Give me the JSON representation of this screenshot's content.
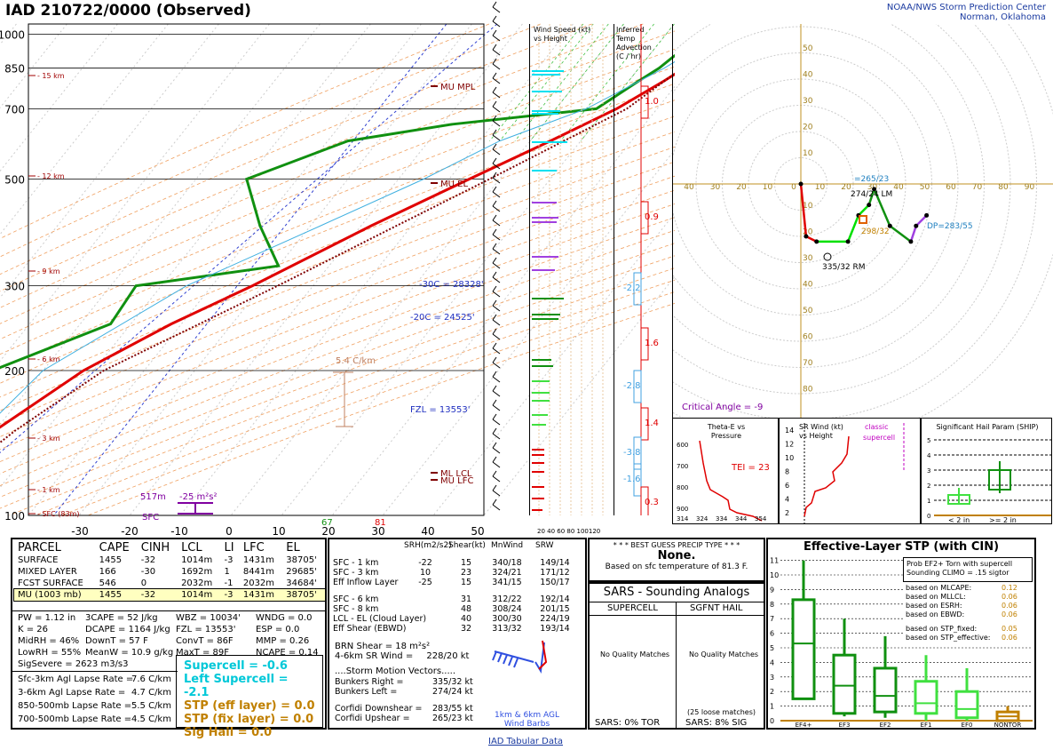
{
  "header": {
    "title": "IAD   210722/0000  (Observed)",
    "org_line1": "NOAA/NWS Storm Prediction Center",
    "org_line2": "Norman, Oklahoma"
  },
  "skewt": {
    "pressure_labels": [
      "100",
      "200",
      "300",
      "500",
      "700",
      "850",
      "1000"
    ],
    "temp_labels": [
      "-30",
      "-20",
      "-10",
      "0",
      "10",
      "20",
      "30",
      "40",
      "50"
    ],
    "height_labels": [
      "15 km",
      "12 km",
      "9 km",
      "6 km",
      "3 km",
      "1 km",
      "SFC (83m)"
    ],
    "annotations": {
      "mu_mpl": "MU MPL",
      "mu_el": "MU EL",
      "m30": "-30C = 28328'",
      "m20": "-20C = 24525'",
      "fzl": "FZL = 13553'",
      "ml_lcl": "ML LCL",
      "mu_lfc": "MU LFC",
      "lapse": "5.4 C/km",
      "h517": "517m",
      "srh": "-25 m²s²",
      "sfc": "SFC",
      "t_dew": "67",
      "t_temp": "81"
    }
  },
  "wind_speed": {
    "title1": "Wind Speed (kt)",
    "title2": "vs Height",
    "ticks": "20 40 60 80 100120"
  },
  "temp_adv": {
    "title1": "Inferred",
    "title2": "Temp Advection",
    "title3": "(C / hr)",
    "values": [
      "1.0",
      "0.9",
      "-2.2",
      "1.6",
      "-2.8",
      "1.4",
      "-3.8",
      "-1.6",
      "0.3"
    ]
  },
  "hodograph": {
    "axis_labels": [
      "40",
      "30",
      "20",
      "10",
      "0",
      "10",
      "20",
      "30",
      "40",
      "50",
      "60",
      "70",
      "80",
      "90"
    ],
    "y_labels": [
      "50",
      "40",
      "30",
      "20",
      "10",
      "10",
      "20",
      "30",
      "40",
      "50",
      "60",
      "70",
      "80"
    ],
    "bunkers_left": "=265/23",
    "storm_lm": "274/24 LM",
    "rm": "335/32 RM",
    "mean": "298/32",
    "dp": "DP=283/55",
    "critical": "Critical Angle = -9"
  },
  "theta": {
    "title1": "Theta-E vs",
    "title2": "Pressure",
    "tei": "TEI = 23",
    "xlabels": [
      "314",
      "324",
      "334",
      "344",
      "354"
    ],
    "ylabels": [
      "600",
      "700",
      "800",
      "900"
    ]
  },
  "srw": {
    "title1": "SR Wind (kt)",
    "title2": "vs Height",
    "note1": "classic",
    "note2": "supercell",
    "ylabels": [
      "14",
      "12",
      "10",
      "8",
      "6",
      "4",
      "2"
    ]
  },
  "ship": {
    "title": "Significant Hail Param (SHIP)",
    "ylabels": [
      "5",
      "4",
      "3",
      "2",
      "1",
      "0"
    ],
    "lt": "< 2 in",
    "ge": ">= 2 in"
  },
  "parcel": {
    "headers": [
      "PARCEL",
      "CAPE",
      "CINH",
      "LCL",
      "LI",
      "LFC",
      "EL"
    ],
    "rows": [
      [
        "SURFACE",
        "1455",
        "-32",
        "1014m",
        "-3",
        "1431m",
        "38705'"
      ],
      [
        "MIXED LAYER",
        "166",
        "-30",
        "1692m",
        "1",
        "8441m",
        "29685'"
      ],
      [
        "FCST SURFACE",
        "546",
        "0",
        "2032m",
        "-1",
        "2032m",
        "34684'"
      ],
      [
        "MU  (1003 mb)",
        "1455",
        "-32",
        "1014m",
        "-3",
        "1431m",
        "38705'"
      ]
    ],
    "idx": [
      [
        "PW = 1.12 in",
        "3CAPE = 52 J/kg",
        "WBZ = 10034'",
        "WNDG = 0.0"
      ],
      [
        "K = 26",
        "DCAPE = 1164 J/kg",
        "FZL = 13553'",
        "ESP = 0.0"
      ],
      [
        "MidRH = 46%",
        "DownT = 57 F",
        "ConvT = 86F",
        "MMP = 0.26"
      ],
      [
        "LowRH = 55%",
        "MeanW = 10.9 g/kg",
        "MaxT = 89F",
        "NCAPE = 0.14"
      ]
    ],
    "sigsevere": "SigSevere = 2623 m3/s3",
    "lapse": [
      [
        "Sfc-3km Agl Lapse Rate =",
        "7.6 C/km"
      ],
      [
        "3-6km Agl Lapse Rate =",
        "4.7 C/km"
      ],
      [
        "850-500mb Lapse Rate =",
        "5.5 C/km"
      ],
      [
        "700-500mb Lapse Rate =",
        "4.5 C/km"
      ]
    ],
    "composite": [
      [
        "Supercell = -0.6",
        "#00c8d8"
      ],
      [
        "Left Supercell = -2.1",
        "#00c8d8"
      ],
      [
        "STP (eff layer) = 0.0",
        "#c08000"
      ],
      [
        "STP (fix layer) = 0.0",
        "#c08000"
      ],
      [
        "Sig Hail = 0.0",
        "#c08000"
      ]
    ]
  },
  "kinematic": {
    "headers": [
      "SRH(m2/s2)",
      "Shear(kt)",
      "MnWind",
      "SRW"
    ],
    "rows": [
      [
        "SFC - 1 km",
        "-22",
        "15",
        "340/18",
        "149/14"
      ],
      [
        "SFC - 3 km",
        "10",
        "23",
        "324/21",
        "171/12"
      ],
      [
        "Eff Inflow Layer",
        "-25",
        "15",
        "341/15",
        "150/17"
      ],
      [
        "SFC - 6 km",
        "",
        "31",
        "312/22",
        "192/14"
      ],
      [
        "SFC - 8 km",
        "",
        "48",
        "308/24",
        "201/15"
      ],
      [
        "LCL - EL (Cloud Layer)",
        "",
        "40",
        "300/30",
        "224/19"
      ],
      [
        "Eff Shear (EBWD)",
        "",
        "32",
        "313/32",
        "193/14"
      ]
    ],
    "brn": "BRN Shear = 18 m²s²",
    "srwind": "4-6km SR Wind =",
    "srwind_v": "228/20 kt",
    "vectors_title": "....Storm Motion Vectors.....",
    "vectors": [
      [
        "Bunkers Right =",
        "335/32 kt"
      ],
      [
        "Bunkers Left =",
        "274/24 kt"
      ],
      [
        "Corfidi Downshear =",
        "283/55 kt"
      ],
      [
        "Corfidi Upshear =",
        "265/23 kt"
      ]
    ],
    "agl": "1km & 6km AGL",
    "barbs": "Wind Barbs"
  },
  "precip": {
    "title": "* * * BEST GUESS PRECIP TYPE * * *",
    "value": "None.",
    "note": "Based on sfc temperature of 81.3 F."
  },
  "analogs": {
    "title": "SARS - Sounding Analogs",
    "col1": "SUPERCELL",
    "col2": "SGFNT HAIL",
    "nq1": "No Quality Matches",
    "nq2": "No Quality Matches",
    "loose": "(25 loose matches)",
    "sars1": "SARS:  0% TOR",
    "sars2": "SARS:  8% SIG"
  },
  "stp": {
    "title": "Effective-Layer STP (with CIN)",
    "prob": "Prob EF2+ Torn with supercell",
    "climo": "Sounding CLIMO = .15 sigtor",
    "based": [
      [
        "based on MLCAPE:",
        "0.12"
      ],
      [
        "based on MLLCL:",
        "0.06"
      ],
      [
        "based on ESRH:",
        "0.06"
      ],
      [
        "based on EBWD:",
        "0.06"
      ],
      [
        "based on STP_fixed:",
        "0.05"
      ],
      [
        "based on STP_effective:",
        "0.06"
      ]
    ],
    "ylabels": [
      "11",
      "10",
      "9",
      "8",
      "7",
      "6",
      "5",
      "4",
      "3",
      "2",
      "1",
      "0"
    ],
    "categories": [
      "EF4+",
      "EF3",
      "EF2",
      "EF1",
      "EF0",
      "NONTOR"
    ]
  },
  "footer": "IAD Tabular Data",
  "chart_data": [
    {
      "type": "line",
      "title": "Skew-T log-P",
      "y_scale": "log",
      "ylim": [
        1050,
        100
      ],
      "xlim": [
        -40,
        50
      ],
      "series": [
        {
          "name": "Temperature",
          "color": "#e00000",
          "points": [
            [
              1003,
              27
            ],
            [
              950,
              24
            ],
            [
              900,
              21
            ],
            [
              850,
              19
            ],
            [
              800,
              17
            ],
            [
              700,
              12
            ],
            [
              600,
              4
            ],
            [
              500,
              -6
            ],
            [
              400,
              -18
            ],
            [
              300,
              -32
            ],
            [
              250,
              -42
            ],
            [
              200,
              -52
            ],
            [
              150,
              -60
            ],
            [
              120,
              -64
            ],
            [
              100,
              -64
            ]
          ]
        },
        {
          "name": "Dewpoint",
          "color": "#109010",
          "points": [
            [
              1003,
              19
            ],
            [
              950,
              17
            ],
            [
              900,
              15
            ],
            [
              850,
              14
            ],
            [
              800,
              12
            ],
            [
              700,
              8
            ],
            [
              650,
              -18
            ],
            [
              600,
              -36
            ],
            [
              500,
              -50
            ],
            [
              400,
              -40
            ],
            [
              330,
              -30
            ],
            [
              300,
              -55
            ],
            [
              250,
              -54
            ],
            [
              200,
              -70
            ],
            [
              150,
              -78
            ],
            [
              100,
              -80
            ]
          ]
        }
      ]
    },
    {
      "type": "scatter",
      "title": "Hodograph",
      "points": [
        [
          0,
          0
        ],
        [
          2,
          -20
        ],
        [
          6,
          -22
        ],
        [
          18,
          -22
        ],
        [
          22,
          -12
        ],
        [
          26,
          -8
        ],
        [
          28,
          -2
        ],
        [
          34,
          -16
        ],
        [
          42,
          -22
        ],
        [
          44,
          -16
        ],
        [
          48,
          -12
        ]
      ]
    },
    {
      "type": "bar",
      "title": "Effective-Layer STP (with CIN)",
      "categories": [
        "EF4+",
        "EF3",
        "EF2",
        "EF1",
        "EF0",
        "NONTOR"
      ],
      "medians": [
        5.3,
        2.4,
        1.7,
        1.2,
        0.8,
        0.3
      ]
    }
  ]
}
